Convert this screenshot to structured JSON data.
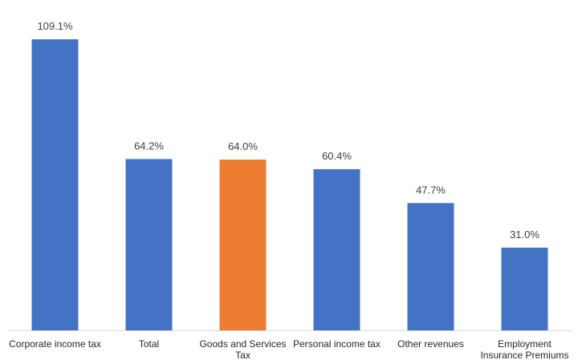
{
  "chart_data": {
    "type": "bar",
    "categories": [
      [
        "Corporate income tax"
      ],
      [
        "Total"
      ],
      [
        "Goods and Services",
        "Tax"
      ],
      [
        "Personal income tax"
      ],
      [
        "Other revenues"
      ],
      [
        "Employment",
        "Insurance Premiums"
      ]
    ],
    "values": [
      109.1,
      64.2,
      64.0,
      60.4,
      47.7,
      31.0
    ],
    "data_labels": [
      "109.1%",
      "64.2%",
      "64.0%",
      "60.4%",
      "47.7%",
      "31.0%"
    ],
    "colors": [
      "#4472C4",
      "#4472C4",
      "#ED7D31",
      "#4472C4",
      "#4472C4",
      "#4472C4"
    ],
    "title": "",
    "xlabel": "",
    "ylabel": "",
    "ylim": [
      0,
      109.1
    ],
    "grid": false,
    "legend": "none",
    "axis_color": "#D9D9D9"
  }
}
